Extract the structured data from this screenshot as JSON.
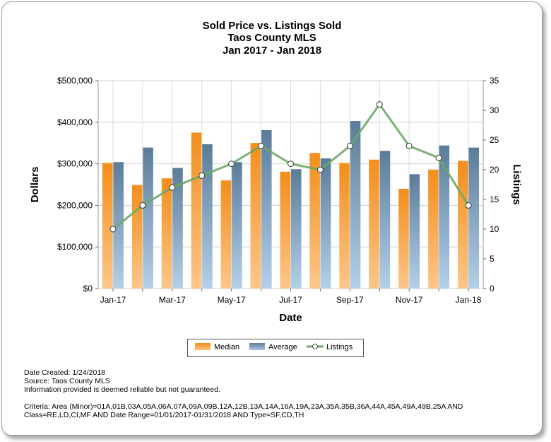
{
  "chart_data": {
    "type": "bar+line",
    "title": [
      "Sold Price vs. Listings Sold",
      "Taos County MLS",
      "Jan 2017 - Jan 2018"
    ],
    "xlabel": "Date",
    "ylabel_left": "Dollars",
    "ylabel_right": "Listings",
    "categories": [
      "Jan-17",
      "Feb-17",
      "Mar-17",
      "Apr-17",
      "May-17",
      "Jun-17",
      "Jul-17",
      "Aug-17",
      "Sep-17",
      "Oct-17",
      "Nov-17",
      "Dec-17",
      "Jan-18"
    ],
    "x_tick_labels": [
      "Jan-17",
      "",
      "Mar-17",
      "",
      "May-17",
      "",
      "Jul-17",
      "",
      "Sep-17",
      "",
      "Nov-17",
      "",
      "Jan-18"
    ],
    "ylim_left": [
      0,
      500000
    ],
    "yticks_left": [
      "$0",
      "$100,000",
      "$200,000",
      "$300,000",
      "$400,000",
      "$500,000"
    ],
    "ylim_right": [
      0,
      35
    ],
    "yticks_right": [
      "0",
      "5",
      "10",
      "15",
      "20",
      "25",
      "30",
      "35"
    ],
    "grid": true,
    "legend_position": "bottom",
    "series": [
      {
        "name": "Median",
        "type": "bar",
        "axis": "left",
        "color": "#f28e1c",
        "values": [
          302000,
          249000,
          265000,
          375000,
          260000,
          350000,
          281000,
          326000,
          302000,
          310000,
          240000,
          286000,
          307000
        ]
      },
      {
        "name": "Average",
        "type": "bar",
        "axis": "left",
        "color": "#5e7f9c",
        "values": [
          304000,
          339000,
          290000,
          347000,
          304000,
          381000,
          287000,
          313000,
          403000,
          331000,
          275000,
          344000,
          339000
        ]
      },
      {
        "name": "Listings",
        "type": "line",
        "axis": "right",
        "color": "#6aaa64",
        "values": [
          10,
          14,
          17,
          19,
          21,
          24,
          21,
          20,
          24,
          31,
          24,
          22,
          14
        ]
      }
    ]
  },
  "footer": {
    "lines": [
      "Date Created: 1/24/2018",
      "Source: Taos County MLS",
      "Information provided is deemed reliable but not guaranteed."
    ],
    "criteria": [
      "Criteria: Area (Minor)=01A,01B,03A,05A,06A,07A,09A,09B,12A,12B,13A,14A,16A,19A,23A,35A,35B,36A,44A,45A,49A,49B,25A AND",
      "Class=RE,LD,CI,MF AND Date Range=01/01/2017-01/31/2018 AND Type=SF,CD,TH"
    ]
  }
}
